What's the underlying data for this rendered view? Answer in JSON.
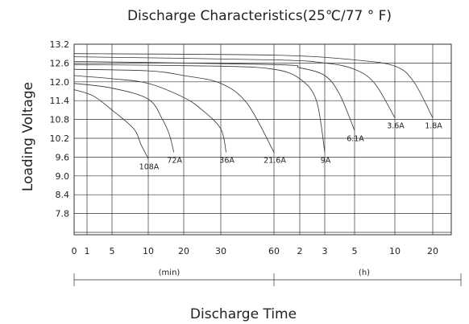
{
  "chart_data": {
    "type": "line",
    "title": "Discharge Characteristics(25℃/77 ° F)",
    "xlabel": "Discharge Time",
    "ylabel": "Loading Voltage",
    "ylim": [
      7.4,
      13.2
    ],
    "y_ticks": [
      "13.2",
      "12.6",
      "12.0",
      "11.4",
      "10.8",
      "10.2",
      "9.6",
      "9.0",
      "8.4",
      "7.8"
    ],
    "x_ticks": [
      "0",
      "1",
      "5",
      "10",
      "20",
      "30",
      "60",
      "2",
      "3",
      "5",
      "10",
      "20"
    ],
    "x_units": [
      "(min)",
      "(h)"
    ],
    "grid": true,
    "series": [
      {
        "name": "108A",
        "x": [
          0,
          2,
          5,
          8,
          9,
          10
        ],
        "y": [
          11.75,
          11.55,
          11.1,
          10.5,
          10.0,
          9.55
        ]
      },
      {
        "name": "72A",
        "x": [
          0,
          5,
          10,
          14,
          16,
          17.2
        ],
        "y": [
          11.95,
          11.8,
          11.45,
          10.8,
          10.3,
          9.75
        ]
      },
      {
        "name": "36A",
        "x": [
          0,
          5,
          10,
          20,
          25,
          30,
          33
        ],
        "y": [
          12.2,
          12.1,
          11.95,
          11.5,
          11.1,
          10.5,
          9.75
        ]
      },
      {
        "name": "21.6A",
        "x": [
          0,
          10,
          20,
          30,
          45,
          60
        ],
        "y": [
          12.4,
          12.35,
          12.2,
          11.95,
          11.3,
          9.75
        ]
      },
      {
        "name": "9A",
        "x": [
          0,
          30,
          60,
          120,
          160,
          180
        ],
        "y": [
          12.55,
          12.5,
          12.4,
          12.1,
          11.4,
          9.75
        ]
      },
      {
        "name": "6.1A",
        "x": [
          0,
          60,
          120,
          180,
          240,
          300
        ],
        "y": [
          12.65,
          12.55,
          12.45,
          12.2,
          11.6,
          10.45
        ]
      },
      {
        "name": "3.6A",
        "x": [
          0,
          60,
          180,
          300,
          450,
          600
        ],
        "y": [
          12.8,
          12.7,
          12.6,
          12.4,
          11.95,
          10.85
        ]
      },
      {
        "name": "1.8A",
        "x": [
          0,
          60,
          300,
          600,
          900,
          1200
        ],
        "y": [
          12.9,
          12.85,
          12.7,
          12.5,
          12.0,
          10.85
        ]
      }
    ]
  }
}
